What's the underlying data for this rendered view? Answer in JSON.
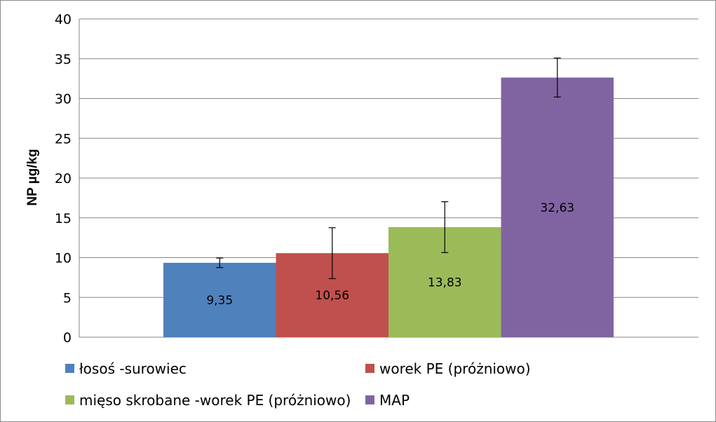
{
  "chart_data": {
    "type": "bar",
    "title": "",
    "ylabel": "NP µg/kg",
    "xlabel": "",
    "ylim": [
      0,
      40
    ],
    "yticks": [
      "0",
      "5",
      "10",
      "15",
      "20",
      "25",
      "30",
      "35",
      "40"
    ],
    "grid": true,
    "legend_position": "bottom",
    "series": [
      {
        "name": "łosoś -surowiec",
        "value": 9.35,
        "label": "9,35",
        "error": 0.6,
        "color": "#4f81bd"
      },
      {
        "name": "worek PE (próżniowo)",
        "value": 10.56,
        "label": "10,56",
        "error": 3.2,
        "color": "#c0504d"
      },
      {
        "name": "mięso skrobane -worek PE (próżniowo)",
        "value": 13.83,
        "label": "13,83",
        "error": 3.2,
        "color": "#9bbb59"
      },
      {
        "name": "MAP",
        "value": 32.63,
        "label": "32,63",
        "error": 2.45,
        "color": "#8064a2"
      }
    ]
  }
}
